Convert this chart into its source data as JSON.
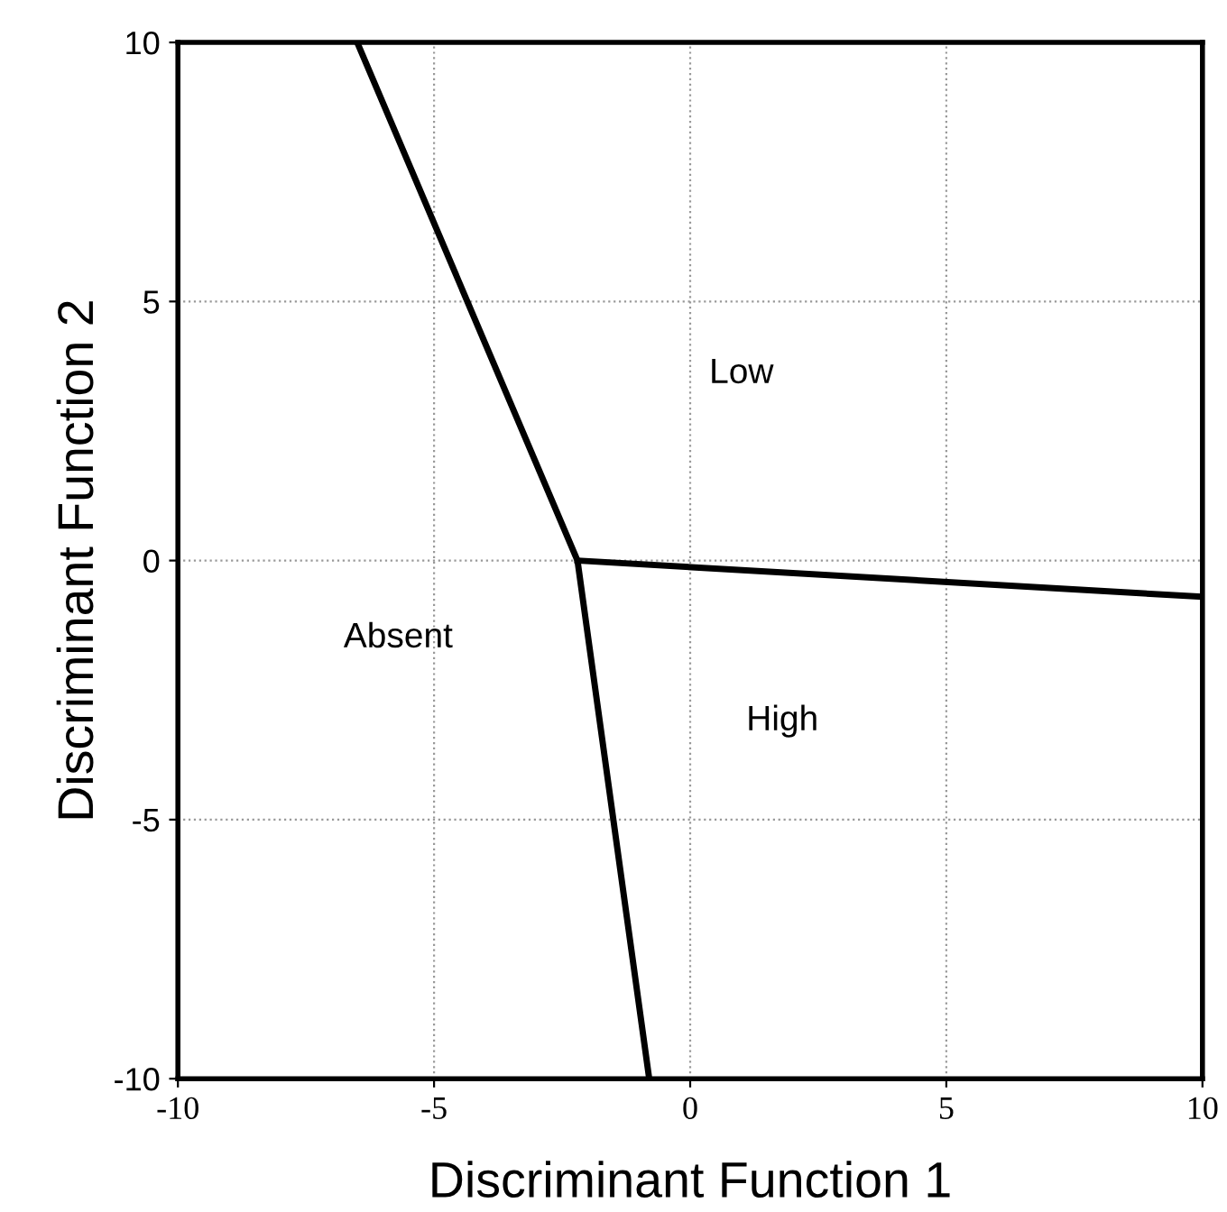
{
  "chart_data": {
    "type": "line",
    "xlabel": "Discriminant Function 1",
    "ylabel": "Discriminant Function 2",
    "xlim": [
      -10,
      10
    ],
    "ylim": [
      -10,
      10
    ],
    "xticks": [
      -10,
      -5,
      0,
      5,
      10
    ],
    "yticks": [
      -10,
      -5,
      0,
      5,
      10
    ],
    "grid": true,
    "series": [
      {
        "color": "#000000",
        "x": [
          -6.5,
          -2.2,
          -0.8
        ],
        "values": [
          10,
          0,
          -10
        ]
      },
      {
        "color": "#000000",
        "x": [
          -2.2,
          10
        ],
        "values": [
          0,
          -0.7
        ]
      }
    ],
    "annotations": [
      "Low",
      "Absent",
      "High"
    ]
  }
}
